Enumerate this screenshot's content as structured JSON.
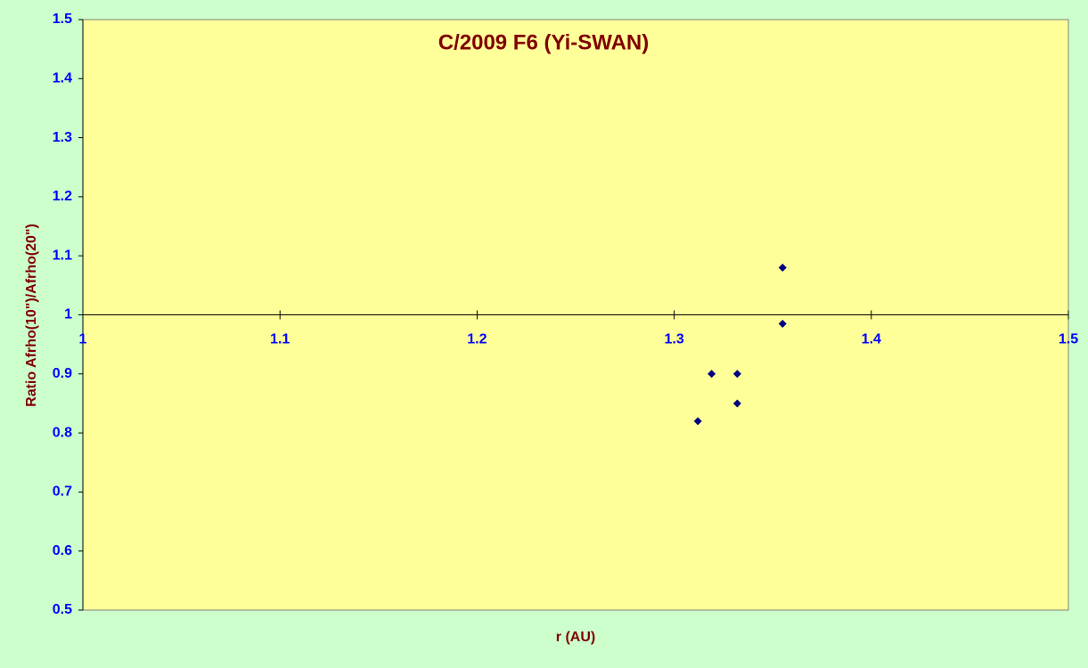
{
  "chart_data": {
    "type": "scatter",
    "title": "C/2009 F6 (Yi-SWAN)",
    "x_label": "r (AU)",
    "y_label": "Ratio Afrho(10\")/Afrho(20\")",
    "series": [
      {
        "name": null,
        "color": "#000080",
        "x": [
          1.355,
          1.355,
          1.319,
          1.332,
          1.332,
          1.312
        ],
        "values": [
          1.08,
          0.985,
          0.9,
          0.9,
          0.85,
          0.82
        ]
      }
    ],
    "xlim": [
      1,
      1.5
    ],
    "xticks": [
      1,
      1.1,
      1.2,
      1.3,
      1.4,
      1.5
    ],
    "ylim": [
      0.5,
      1.5
    ],
    "yticks": [
      0.5,
      0.6,
      0.7,
      0.8,
      0.9,
      1,
      1.1,
      1.2,
      1.3,
      1.4,
      1.5
    ],
    "x_axis_crosses_at": 1,
    "background": "#ccffcc",
    "plot_background": "#ffff99"
  }
}
